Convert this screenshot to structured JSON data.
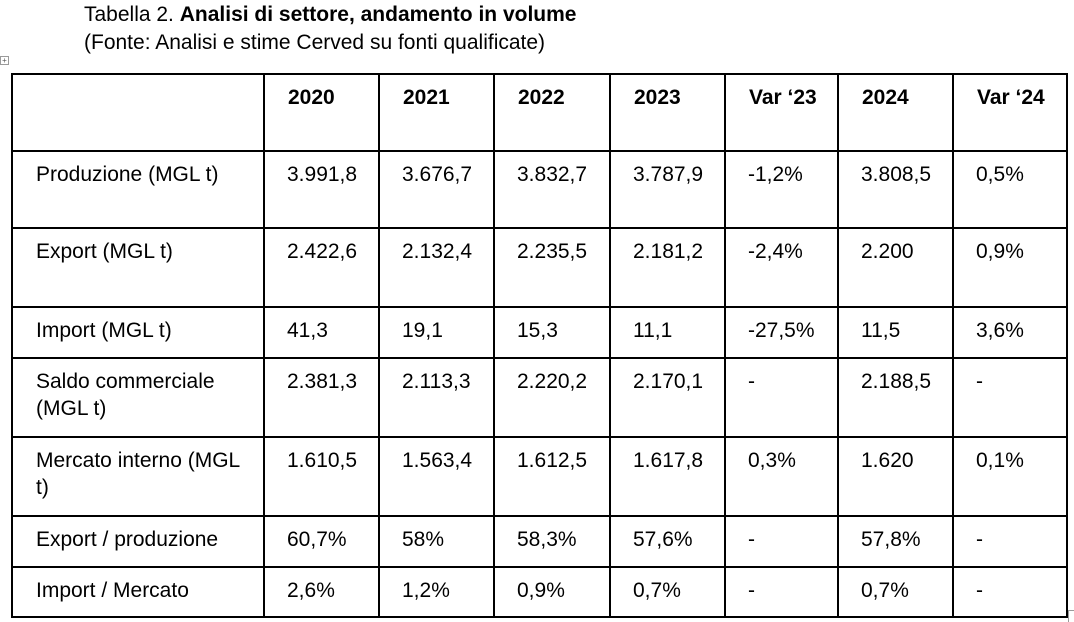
{
  "caption": {
    "prefix": "Tabella 2. ",
    "title": "Analisi di settore, andamento in volume",
    "source": "(Fonte: Analisi e stime Cerved su fonti qualificate)"
  },
  "table": {
    "headers": [
      "",
      "2020",
      "2021",
      "2022",
      "2023",
      "Var ‘23",
      "2024",
      "Var ‘24"
    ],
    "rows": [
      {
        "label": "Produzione (MGL t)",
        "values": [
          "3.991,8",
          "3.676,7",
          "3.832,7",
          "3.787,9",
          "-1,2%",
          "3.808,5",
          "0,5%"
        ]
      },
      {
        "label": "Export (MGL t)",
        "values": [
          "2.422,6",
          "2.132,4",
          "2.235,5",
          "2.181,2",
          "-2,4%",
          "2.200",
          "0,9%"
        ]
      },
      {
        "label": "Import (MGL t)",
        "values": [
          "41,3",
          "19,1",
          "15,3",
          "11,1",
          "-27,5%",
          "11,5",
          "3,6%"
        ]
      },
      {
        "label": "Saldo commerciale (MGL t)",
        "values": [
          "2.381,3",
          "2.113,3",
          "2.220,2",
          "2.170,1",
          "-",
          "2.188,5",
          "-"
        ]
      },
      {
        "label": "Mercato interno (MGL t)",
        "values": [
          "1.610,5",
          "1.563,4",
          "1.612,5",
          "1.617,8",
          "0,3%",
          "1.620",
          "0,1%"
        ]
      },
      {
        "label": "Export / produzione",
        "values": [
          "60,7%",
          "58%",
          "58,3%",
          "57,6%",
          "-",
          "57,8%",
          "-"
        ]
      },
      {
        "label": "Import / Mercato",
        "values": [
          "2,6%",
          "1,2%",
          "0,9%",
          "0,7%",
          "-",
          "0,7%",
          "-"
        ]
      }
    ]
  }
}
